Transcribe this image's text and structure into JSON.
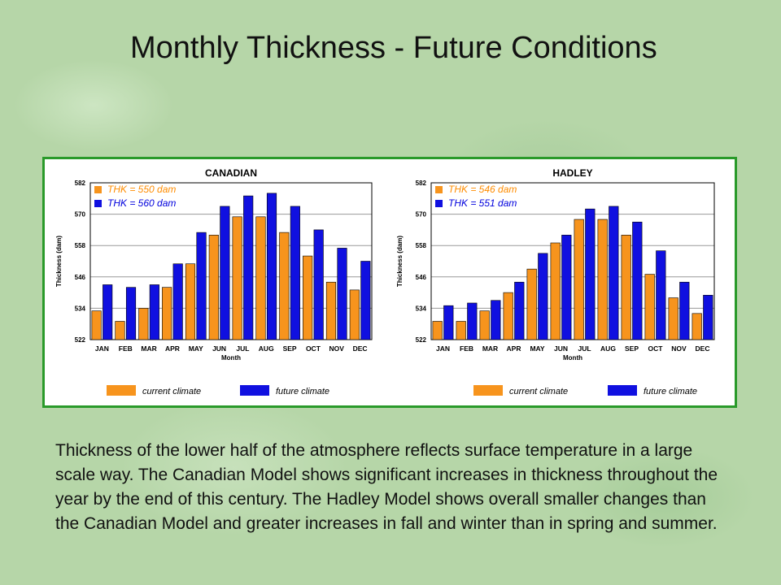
{
  "slide": {
    "title": "Monthly Thickness - Future Conditions",
    "body": "Thickness of the lower half of the atmosphere reflects surface temperature in a large scale way. The Canadian Model shows significant increases in thickness throughout the year by the end of this century. The Hadley Model shows overall smaller changes than the Canadian Model and greater increases in fall and winter than in spring and summer."
  },
  "colors": {
    "current": "#f7941d",
    "future": "#1010e0",
    "frame": "#2a9a2a",
    "legend_text": "#ff8c00",
    "future_text": "#0000dd"
  },
  "chart_data": [
    {
      "type": "bar",
      "title": "CANADIAN",
      "xlabel": "Month",
      "ylabel": "Thickness (dam)",
      "ylim": [
        522,
        582
      ],
      "yticks": [
        522,
        534,
        546,
        558,
        570,
        582
      ],
      "categories": [
        "JAN",
        "FEB",
        "MAR",
        "APR",
        "MAY",
        "JUN",
        "JUL",
        "AUG",
        "SEP",
        "OCT",
        "NOV",
        "DEC"
      ],
      "series": [
        {
          "name": "current climate",
          "values": [
            533,
            529,
            534,
            542,
            551,
            562,
            569,
            569,
            563,
            554,
            544,
            541
          ]
        },
        {
          "name": "future climate",
          "values": [
            543,
            542,
            543,
            551,
            563,
            573,
            577,
            578,
            573,
            564,
            557,
            552
          ]
        }
      ],
      "annotations": [
        "THK = 550 dam",
        "THK = 560 dam"
      ],
      "legend": "bottom"
    },
    {
      "type": "bar",
      "title": "HADLEY",
      "xlabel": "Month",
      "ylabel": "Thickness (dam)",
      "ylim": [
        522,
        582
      ],
      "yticks": [
        522,
        534,
        546,
        558,
        570,
        582
      ],
      "categories": [
        "JAN",
        "FEB",
        "MAR",
        "APR",
        "MAY",
        "JUN",
        "JUL",
        "AUG",
        "SEP",
        "OCT",
        "NOV",
        "DEC"
      ],
      "series": [
        {
          "name": "current climate",
          "values": [
            529,
            529,
            533,
            540,
            549,
            559,
            568,
            568,
            562,
            547,
            538,
            532
          ]
        },
        {
          "name": "future climate",
          "values": [
            535,
            536,
            537,
            544,
            555,
            562,
            572,
            573,
            567,
            556,
            544,
            539
          ]
        }
      ],
      "annotations": [
        "THK = 546 dam",
        "THK = 551 dam"
      ],
      "legend": "bottom"
    }
  ]
}
